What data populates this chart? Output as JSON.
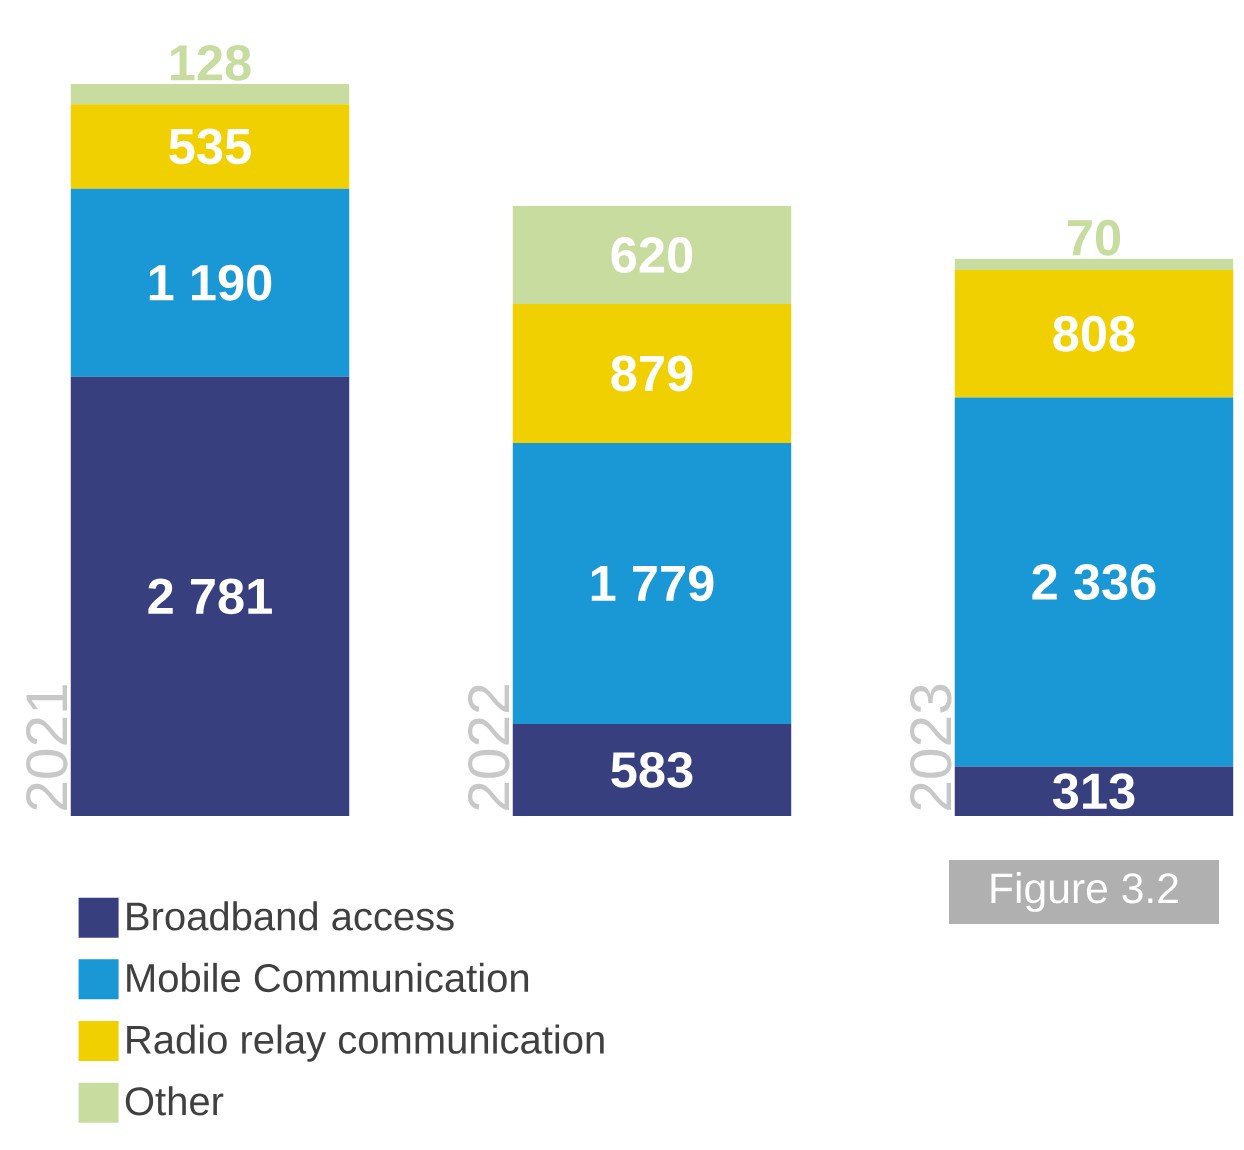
{
  "chart_data": {
    "type": "bar",
    "stacked": true,
    "categories": [
      "2021",
      "2022",
      "2023"
    ],
    "series": [
      {
        "name": "Broadband access",
        "color": "#373f7f",
        "values": [
          2781,
          583,
          313
        ],
        "value_labels": [
          "2 781",
          "583",
          "313"
        ]
      },
      {
        "name": "Mobile Communication",
        "color": "#1a97d5",
        "values": [
          1190,
          1779,
          2336
        ],
        "value_labels": [
          "1 190",
          "1 779",
          "2 336"
        ]
      },
      {
        "name": "Radio relay communication",
        "color": "#f0d000",
        "values": [
          535,
          879,
          808
        ],
        "value_labels": [
          "535",
          "879",
          "808"
        ]
      },
      {
        "name": "Other",
        "color": "#c8dca0",
        "values": [
          128,
          620,
          70
        ],
        "value_labels": [
          "128",
          "620",
          "70"
        ]
      }
    ],
    "legend": "bottom left",
    "annotations": [
      "Figure 3.2"
    ]
  }
}
